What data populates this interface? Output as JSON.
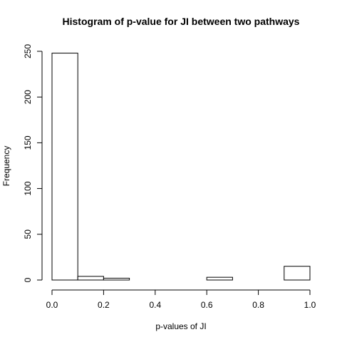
{
  "chart_data": {
    "type": "bar",
    "title": "Histogram of p-value for JI between two pathways",
    "xlabel": "p-values of JI",
    "ylabel": "Frequency",
    "bins": [
      {
        "start": 0.0,
        "end": 0.1,
        "count": 248
      },
      {
        "start": 0.1,
        "end": 0.2,
        "count": 4
      },
      {
        "start": 0.2,
        "end": 0.3,
        "count": 2
      },
      {
        "start": 0.3,
        "end": 0.4,
        "count": 0
      },
      {
        "start": 0.4,
        "end": 0.5,
        "count": 0
      },
      {
        "start": 0.5,
        "end": 0.6,
        "count": 0
      },
      {
        "start": 0.6,
        "end": 0.7,
        "count": 3
      },
      {
        "start": 0.7,
        "end": 0.8,
        "count": 0
      },
      {
        "start": 0.8,
        "end": 0.9,
        "count": 0
      },
      {
        "start": 0.9,
        "end": 1.0,
        "count": 15
      }
    ],
    "xlim": [
      0,
      1
    ],
    "ylim": [
      0,
      250
    ],
    "xticks": [
      0.0,
      0.2,
      0.4,
      0.6,
      0.8,
      1.0
    ],
    "xtick_labels": [
      "0.0",
      "0.2",
      "0.4",
      "0.6",
      "0.8",
      "1.0"
    ],
    "yticks": [
      0,
      50,
      100,
      150,
      200,
      250
    ],
    "ytick_labels": [
      "0",
      "50",
      "100",
      "150",
      "200",
      "250"
    ],
    "grid": false,
    "colors": {
      "bar_fill": "#ffffff",
      "bar_stroke": "#000000"
    }
  }
}
